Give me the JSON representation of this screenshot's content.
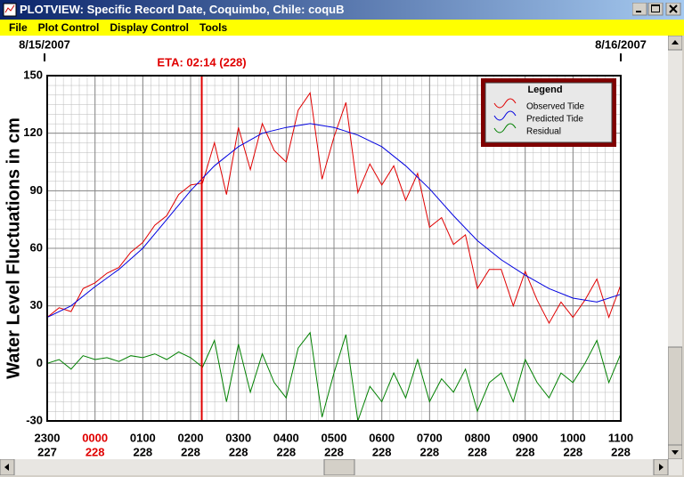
{
  "window": {
    "title": "PLOTVIEW: Specific Record Date, Coquimbo, Chile: coquB",
    "menu": [
      "File",
      "Plot Control",
      "Display Control",
      "Tools"
    ]
  },
  "chart_data": {
    "type": "line",
    "y_label": "Water Level Fluctuations in cm",
    "start_date": "8/15/2007",
    "end_date": "8/16/2007",
    "vline": {
      "x": 2.2333,
      "label": "ETA: 02:14 (228)",
      "color": "#e00000"
    },
    "legend_title": "Legend",
    "legend": "upper right",
    "grid": true,
    "xlim": [
      -1,
      11
    ],
    "ylim": [
      -30,
      150
    ],
    "yticks": [
      -30,
      0,
      30,
      60,
      90,
      120,
      150
    ],
    "xticks": [
      {
        "value": -1,
        "label": "2300"
      },
      {
        "value": 0,
        "label": "0000",
        "color": "#e00000"
      },
      {
        "value": 1,
        "label": "0100"
      },
      {
        "value": 2,
        "label": "0200"
      },
      {
        "value": 3,
        "label": "0300"
      },
      {
        "value": 4,
        "label": "0400"
      },
      {
        "value": 5,
        "label": "0500"
      },
      {
        "value": 6,
        "label": "0600"
      },
      {
        "value": 7,
        "label": "0700"
      },
      {
        "value": 8,
        "label": "0800"
      },
      {
        "value": 9,
        "label": "0900"
      },
      {
        "value": 10,
        "label": "1000"
      },
      {
        "value": 11,
        "label": "1100"
      }
    ],
    "xtick_days": [
      "227",
      "228",
      "228",
      "228",
      "228",
      "228",
      "228",
      "228",
      "228",
      "228",
      "228",
      "228",
      "228"
    ],
    "series": [
      {
        "name": "Observed Tide",
        "color": "#e00000",
        "x": [
          -1,
          -0.75,
          -0.5,
          -0.25,
          0,
          0.25,
          0.5,
          0.75,
          1,
          1.25,
          1.5,
          1.75,
          2,
          2.25,
          2.5,
          2.75,
          3,
          3.25,
          3.5,
          3.75,
          4,
          4.25,
          4.5,
          4.75,
          5,
          5.25,
          5.5,
          5.75,
          6,
          6.25,
          6.5,
          6.75,
          7,
          7.25,
          7.5,
          7.75,
          8,
          8.25,
          8.5,
          8.75,
          9,
          9.25,
          9.5,
          9.75,
          10,
          10.25,
          10.5,
          10.75,
          11
        ],
        "values": [
          24,
          29,
          27,
          39,
          42,
          47,
          50,
          58,
          63,
          72,
          77,
          88,
          93,
          94,
          115,
          88,
          123,
          101,
          125,
          111,
          105,
          132,
          141,
          96,
          118,
          136,
          89,
          104,
          93,
          103,
          85,
          99,
          71,
          76,
          62,
          67,
          39,
          49,
          49,
          30,
          48,
          33,
          21,
          32,
          24,
          33,
          44,
          24,
          41
        ]
      },
      {
        "name": "Predicted Tide",
        "color": "#0000e0",
        "x": [
          -1,
          -0.5,
          0,
          0.5,
          1,
          1.5,
          2,
          2.5,
          3,
          3.5,
          4,
          4.5,
          5,
          5.5,
          6,
          6.5,
          7,
          7.5,
          8,
          8.5,
          9,
          9.5,
          10,
          10.5,
          11
        ],
        "values": [
          24,
          30,
          40,
          49,
          60,
          75,
          90,
          103,
          113,
          120,
          123,
          125,
          123,
          119,
          113,
          103,
          91,
          77,
          64,
          54,
          46,
          39,
          34,
          32,
          36
        ]
      },
      {
        "name": "Residual",
        "color": "#008000",
        "x": [
          -1,
          -0.75,
          -0.5,
          -0.25,
          0,
          0.25,
          0.5,
          0.75,
          1,
          1.25,
          1.5,
          1.75,
          2,
          2.25,
          2.5,
          2.75,
          3,
          3.25,
          3.5,
          3.75,
          4,
          4.25,
          4.5,
          4.75,
          5,
          5.25,
          5.5,
          5.75,
          6,
          6.25,
          6.5,
          6.75,
          7,
          7.25,
          7.5,
          7.75,
          8,
          8.25,
          8.5,
          8.75,
          9,
          9.25,
          9.5,
          9.75,
          10,
          10.25,
          10.5,
          10.75,
          11
        ],
        "values": [
          0,
          2,
          -3,
          4,
          2,
          3,
          1,
          4,
          3,
          5,
          2,
          6,
          3,
          -2,
          12,
          -20,
          10,
          -15,
          5,
          -10,
          -18,
          8,
          16,
          -28,
          -5,
          15,
          -30,
          -12,
          -20,
          -5,
          -18,
          2,
          -20,
          -8,
          -15,
          -3,
          -25,
          -10,
          -5,
          -20,
          2,
          -10,
          -18,
          -5,
          -10,
          0,
          12,
          -10,
          5
        ]
      }
    ]
  }
}
